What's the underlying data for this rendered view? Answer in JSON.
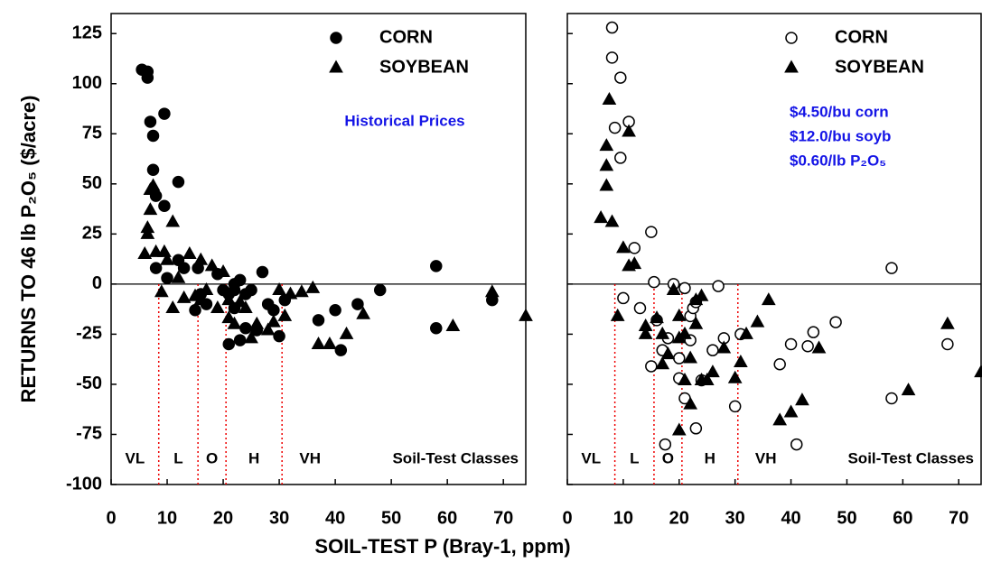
{
  "chart_data": [
    {
      "type": "scatter",
      "xlabel": "SOIL-TEST P (Bray-1, ppm)",
      "ylabel": "RETURNS TO 46 lb P₂O₅ ($/acre)",
      "xlim": [
        0,
        74
      ],
      "ylim": [
        -100,
        135
      ],
      "xticks": [
        0,
        10,
        20,
        30,
        40,
        50,
        60,
        70
      ],
      "yticks": [
        -100,
        -75,
        -50,
        -25,
        0,
        25,
        50,
        75,
        100,
        125
      ],
      "ytick_labels": true,
      "hline": 0,
      "legend": "upper right",
      "annotations": [
        "Historical Prices"
      ],
      "annotation_color": "#1414e6",
      "class_boundaries": [
        8.5,
        15.5,
        20.5,
        30.5
      ],
      "class_labels": [
        "VL",
        "L",
        "O",
        "H",
        "VH"
      ],
      "class_title": "Soil-Test Classes",
      "series": [
        {
          "name": "CORN",
          "marker": "circle",
          "filled": true,
          "color": "#000000",
          "x": [
            5.5,
            6.5,
            6.5,
            7,
            7.5,
            7.5,
            8,
            8,
            9.5,
            9.5,
            10,
            12,
            12,
            13,
            15,
            15.5,
            16,
            17,
            19,
            20,
            21,
            21,
            22,
            22,
            22,
            23,
            23,
            24,
            24,
            25,
            26,
            27,
            28,
            29,
            30,
            31,
            37,
            40,
            41,
            44,
            48,
            58,
            58,
            68
          ],
          "values": [
            107,
            106,
            103,
            81,
            74,
            57,
            44,
            8,
            85,
            39,
            3,
            51,
            12,
            8,
            -13,
            8,
            -5,
            -10,
            5,
            -3,
            -5,
            -30,
            0,
            -12,
            -3,
            -28,
            2,
            -22,
            -5,
            -3,
            -23,
            6,
            -10,
            -13,
            -26,
            -8,
            -18,
            -13,
            -33,
            -10,
            -3,
            9,
            -22,
            -8
          ]
        },
        {
          "name": "SOYBEAN",
          "marker": "triangle",
          "filled": true,
          "color": "#000000",
          "x": [
            6,
            6.5,
            6.5,
            7,
            7,
            7.5,
            8,
            9,
            9.5,
            10,
            11,
            11,
            12,
            13,
            14,
            15,
            16,
            16,
            17,
            18,
            19,
            20,
            21,
            21,
            22,
            23,
            24,
            25,
            26,
            28,
            29,
            30,
            31,
            32,
            34,
            36,
            37,
            39,
            42,
            45,
            61,
            68,
            74
          ],
          "values": [
            15,
            28,
            25,
            37,
            47,
            49,
            16,
            -4,
            16,
            12,
            -12,
            31,
            3,
            -7,
            15,
            -6,
            -8,
            12,
            -3,
            9,
            -12,
            6,
            -8,
            -17,
            -20,
            -9,
            -12,
            -27,
            -20,
            -23,
            -19,
            -3,
            -16,
            -5,
            -4,
            -2,
            -30,
            -30,
            -25,
            -15,
            -21,
            -4,
            -16
          ]
        }
      ]
    },
    {
      "type": "scatter",
      "xlim": [
        0,
        74
      ],
      "ylim": [
        -100,
        135
      ],
      "xticks": [
        0,
        10,
        20,
        30,
        40,
        50,
        60,
        70
      ],
      "yticks": [
        -100,
        -75,
        -50,
        -25,
        0,
        25,
        50,
        75,
        100,
        125
      ],
      "ytick_labels": false,
      "hline": 0,
      "legend": "upper right",
      "annotations": [
        "$4.50/bu corn",
        "$12.0/bu soyb",
        "$0.60/lb P₂O₅"
      ],
      "annotation_color": "#1414e6",
      "class_boundaries": [
        8.5,
        15.5,
        20.5,
        30.5
      ],
      "class_labels": [
        "VL",
        "L",
        "O",
        "H",
        "VH"
      ],
      "class_title": "Soil-Test Classes",
      "series": [
        {
          "name": "CORN",
          "marker": "circle",
          "filled": false,
          "color": "#000000",
          "x": [
            8,
            8,
            8.5,
            9.5,
            9.5,
            10,
            11,
            12,
            13,
            15,
            15,
            15.5,
            16,
            17,
            17.5,
            18,
            19,
            20,
            20,
            21,
            21,
            22,
            22,
            22.5,
            23,
            23,
            24,
            26,
            27,
            28,
            30,
            31,
            38,
            40,
            41,
            43,
            44,
            48,
            58,
            58,
            68
          ],
          "values": [
            128,
            113,
            78,
            103,
            63,
            -7,
            81,
            18,
            -12,
            -41,
            26,
            1,
            -18,
            -33,
            -80,
            -27,
            0,
            -37,
            -47,
            -57,
            -2,
            -28,
            -16,
            -12,
            -72,
            -9,
            -48,
            -33,
            -1,
            -27,
            -61,
            -25,
            -40,
            -30,
            -80,
            -31,
            -24,
            -19,
            8,
            -57,
            -30
          ]
        },
        {
          "name": "SOYBEAN",
          "marker": "triangle",
          "filled": true,
          "color": "#000000",
          "x": [
            6,
            7,
            7,
            7,
            7.5,
            8,
            9,
            10,
            11,
            11,
            12,
            14,
            14,
            16,
            17,
            17,
            18,
            19,
            20,
            20,
            20,
            21,
            21,
            22,
            22,
            23,
            23,
            24,
            24,
            25,
            26,
            28,
            30,
            31,
            32,
            34,
            36,
            38,
            40,
            42,
            45,
            61,
            68,
            74
          ],
          "values": [
            33,
            49,
            59,
            69,
            92,
            31,
            -16,
            18,
            9,
            76,
            10,
            -25,
            -21,
            -17,
            -40,
            -25,
            -35,
            -3,
            -27,
            -73,
            -16,
            -48,
            -25,
            -60,
            -37,
            -8,
            -20,
            -48,
            -6,
            -48,
            -44,
            -32,
            -47,
            -39,
            -25,
            -19,
            -8,
            -68,
            -64,
            -58,
            -32,
            -53,
            -20,
            -44
          ]
        }
      ]
    }
  ]
}
